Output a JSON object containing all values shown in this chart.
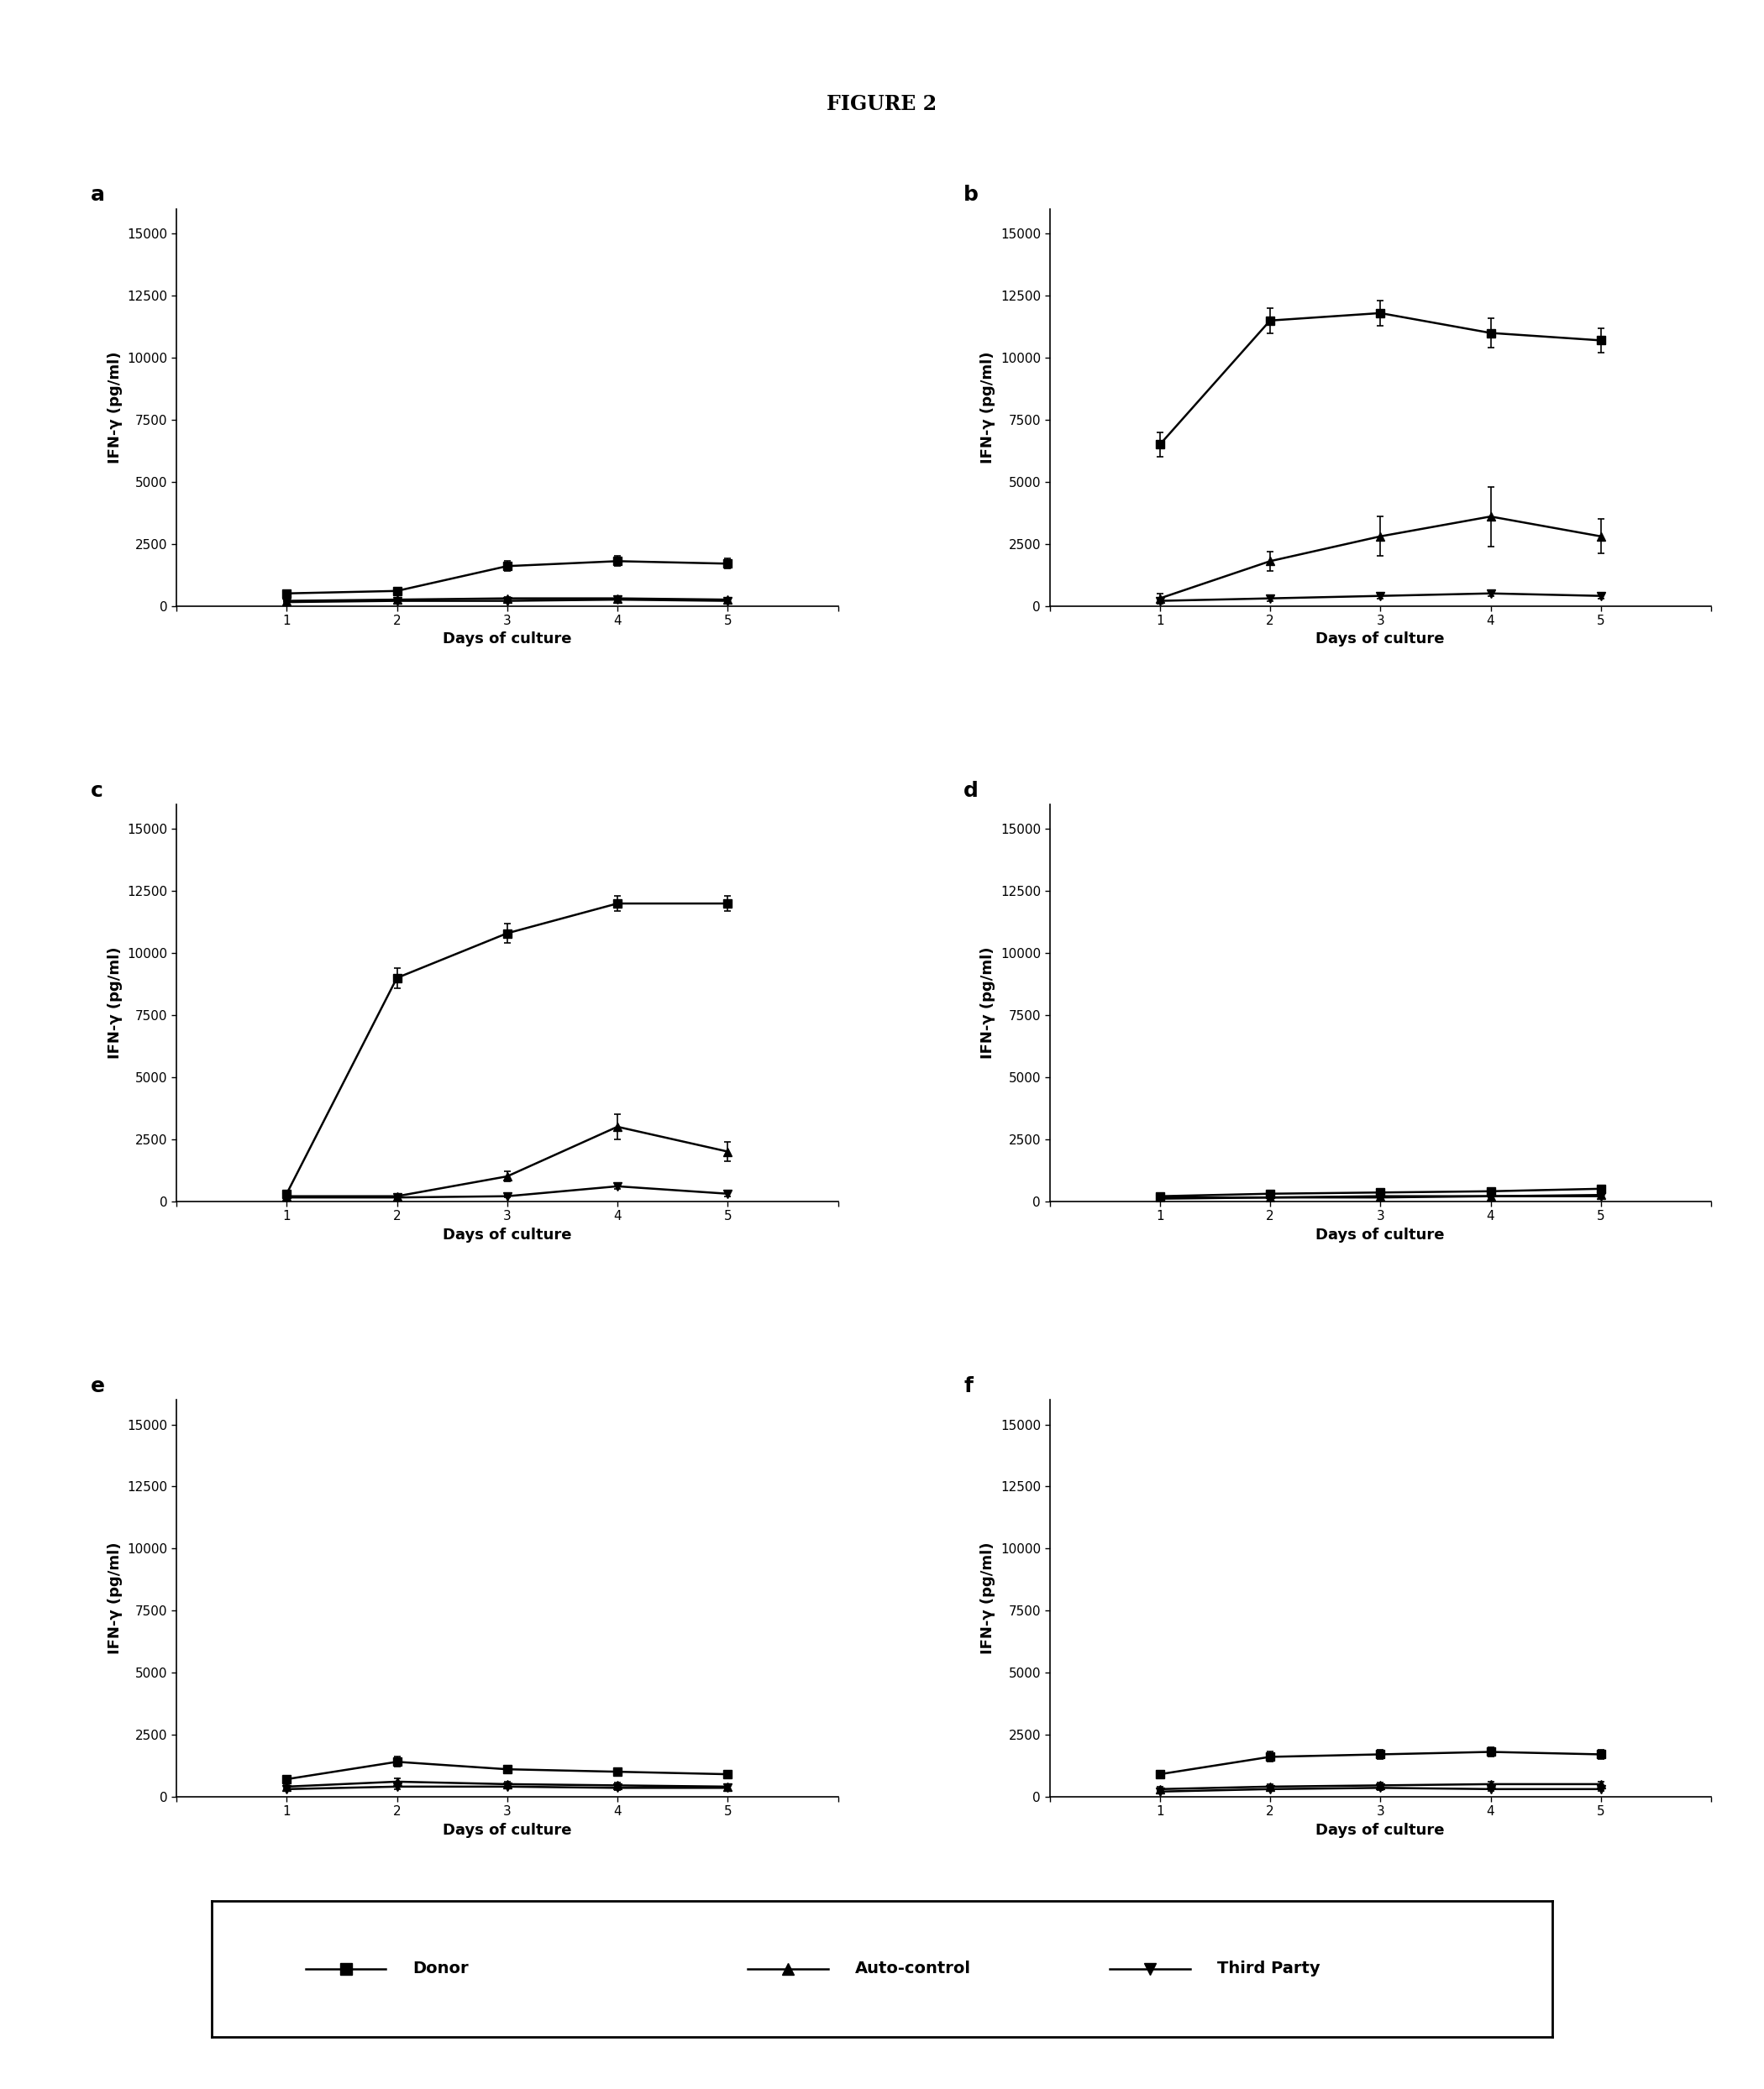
{
  "title": "FIGURE 2",
  "subplots": [
    {
      "label": "a",
      "donor": [
        500,
        600,
        1600,
        1800,
        1700
      ],
      "donor_err": [
        100,
        100,
        200,
        200,
        200
      ],
      "auto": [
        200,
        250,
        300,
        300,
        250
      ],
      "auto_err": [
        50,
        50,
        50,
        50,
        50
      ],
      "third": [
        150,
        200,
        200,
        250,
        200
      ],
      "third_err": [
        50,
        50,
        50,
        50,
        50
      ]
    },
    {
      "label": "b",
      "donor": [
        6500,
        11500,
        11800,
        11000,
        10700
      ],
      "donor_err": [
        500,
        500,
        500,
        600,
        500
      ],
      "auto": [
        300,
        1800,
        2800,
        3600,
        2800
      ],
      "auto_err": [
        200,
        400,
        800,
        1200,
        700
      ],
      "third": [
        200,
        300,
        400,
        500,
        400
      ],
      "third_err": [
        100,
        100,
        100,
        100,
        100
      ]
    },
    {
      "label": "c",
      "donor": [
        300,
        9000,
        10800,
        12000,
        12000
      ],
      "donor_err": [
        100,
        400,
        400,
        300,
        300
      ],
      "auto": [
        200,
        200,
        1000,
        3000,
        2000
      ],
      "auto_err": [
        50,
        50,
        200,
        500,
        400
      ],
      "third": [
        150,
        150,
        200,
        600,
        300
      ],
      "third_err": [
        50,
        50,
        50,
        100,
        100
      ]
    },
    {
      "label": "d",
      "donor": [
        200,
        300,
        350,
        400,
        500
      ],
      "donor_err": [
        50,
        50,
        50,
        50,
        100
      ],
      "auto": [
        150,
        150,
        200,
        200,
        250
      ],
      "auto_err": [
        30,
        30,
        30,
        30,
        50
      ],
      "third": [
        100,
        150,
        150,
        200,
        200
      ],
      "third_err": [
        30,
        30,
        30,
        30,
        30
      ]
    },
    {
      "label": "e",
      "donor": [
        700,
        1400,
        1100,
        1000,
        900
      ],
      "donor_err": [
        100,
        200,
        150,
        150,
        150
      ],
      "auto": [
        400,
        600,
        500,
        450,
        400
      ],
      "auto_err": [
        100,
        150,
        100,
        100,
        100
      ],
      "third": [
        300,
        400,
        400,
        350,
        350
      ],
      "third_err": [
        80,
        100,
        80,
        80,
        80
      ]
    },
    {
      "label": "f",
      "donor": [
        900,
        1600,
        1700,
        1800,
        1700
      ],
      "donor_err": [
        150,
        200,
        200,
        200,
        200
      ],
      "auto": [
        300,
        400,
        450,
        500,
        500
      ],
      "auto_err": [
        80,
        100,
        100,
        100,
        100
      ],
      "third": [
        200,
        300,
        350,
        300,
        300
      ],
      "third_err": [
        60,
        80,
        80,
        80,
        80
      ]
    }
  ],
  "days": [
    1,
    2,
    3,
    4,
    5
  ],
  "xlim": [
    0,
    6
  ],
  "ylim": [
    0,
    16000
  ],
  "yticks": [
    0,
    2500,
    5000,
    7500,
    10000,
    12500,
    15000
  ],
  "xticks": [
    0,
    1,
    2,
    3,
    4,
    5,
    6
  ],
  "xlabel": "Days of culture",
  "ylabel": "IFN-γ (pg/ml)",
  "legend_labels": [
    "Donor",
    "Auto-control",
    "Third Party"
  ],
  "line_color": "#000000",
  "background_color": "#ffffff",
  "title_fontsize": 17,
  "label_fontsize": 13,
  "tick_fontsize": 11,
  "sublabel_fontsize": 18,
  "legend_fontsize": 14
}
